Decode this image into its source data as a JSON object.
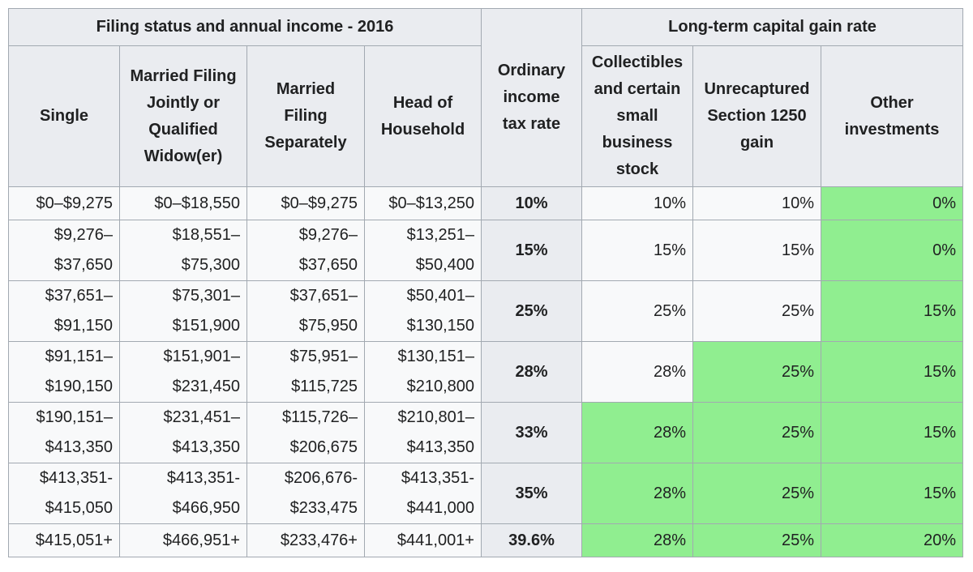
{
  "table": {
    "group_headers": {
      "filing": "Filing status and annual income - 2016",
      "ordinary": [
        "Ordinary",
        "income",
        "tax rate"
      ],
      "capital": "Long-term capital gain rate"
    },
    "sub_headers": {
      "single": [
        "Single"
      ],
      "joint": [
        "Married Filing",
        "Jointly or",
        "Qualified",
        "Widow(er)"
      ],
      "separate": [
        "Married",
        "Filing",
        "Separately"
      ],
      "head": [
        "Head of",
        "Household"
      ],
      "collectibles": [
        "Collectibles",
        "and certain",
        "small",
        "business",
        "stock"
      ],
      "section1250": [
        "Unrecaptured",
        "Section 1250",
        "gain"
      ],
      "other": [
        "Other",
        "investments"
      ]
    },
    "rows": [
      {
        "single": [
          "$0–$9,275"
        ],
        "joint": [
          "$0–$18,550"
        ],
        "separate": [
          "$0–$9,275"
        ],
        "head": [
          "$0–$13,250"
        ],
        "ordinary": "10%",
        "collectibles": "10%",
        "section1250": "10%",
        "other": "0%"
      },
      {
        "single": [
          "$9,276–",
          "$37,650"
        ],
        "joint": [
          "$18,551–",
          "$75,300"
        ],
        "separate": [
          "$9,276–",
          "$37,650"
        ],
        "head": [
          "$13,251–",
          "$50,400"
        ],
        "ordinary": "15%",
        "collectibles": "15%",
        "section1250": "15%",
        "other": "0%"
      },
      {
        "single": [
          "$37,651–",
          "$91,150"
        ],
        "joint": [
          "$75,301–",
          "$151,900"
        ],
        "separate": [
          "$37,651–",
          "$75,950"
        ],
        "head": [
          "$50,401–",
          "$130,150"
        ],
        "ordinary": "25%",
        "collectibles": "25%",
        "section1250": "25%",
        "other": "15%"
      },
      {
        "single": [
          "$91,151–",
          "$190,150"
        ],
        "joint": [
          "$151,901–",
          "$231,450"
        ],
        "separate": [
          "$75,951–",
          "$115,725"
        ],
        "head": [
          "$130,151–",
          "$210,800"
        ],
        "ordinary": "28%",
        "collectibles": "28%",
        "section1250": "25%",
        "other": "15%"
      },
      {
        "single": [
          "$190,151–",
          "$413,350"
        ],
        "joint": [
          "$231,451–",
          "$413,350"
        ],
        "separate": [
          "$115,726–",
          "$206,675"
        ],
        "head": [
          "$210,801–",
          "$413,350"
        ],
        "ordinary": "33%",
        "collectibles": "28%",
        "section1250": "25%",
        "other": "15%"
      },
      {
        "single": [
          "$413,351-",
          "$415,050"
        ],
        "joint": [
          "$413,351-",
          "$466,950"
        ],
        "separate": [
          "$206,676-",
          "$233,475"
        ],
        "head": [
          "$413,351-",
          "$441,000"
        ],
        "ordinary": "35%",
        "collectibles": "28%",
        "section1250": "25%",
        "other": "15%"
      },
      {
        "single": [
          "$415,051+"
        ],
        "joint": [
          "$466,951+"
        ],
        "separate": [
          "$233,476+"
        ],
        "head": [
          "$441,001+"
        ],
        "ordinary": "39.6%",
        "collectibles": "28%",
        "section1250": "25%",
        "other": "20%"
      }
    ]
  },
  "colors": {
    "header_bg": "#eaecf0",
    "cell_bg": "#f8f9fa",
    "highlight": "#90ee90",
    "border": "#a2a9b1"
  }
}
